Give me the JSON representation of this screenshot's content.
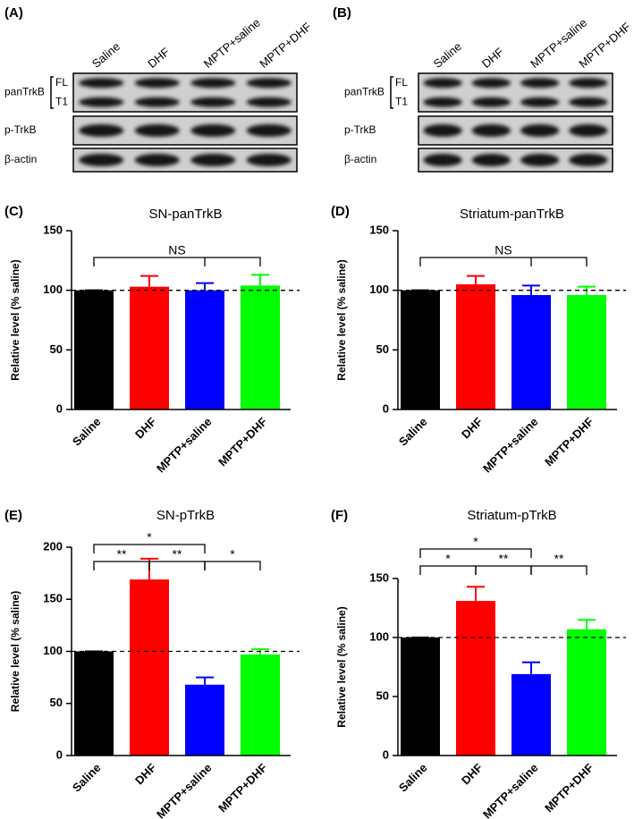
{
  "blots": [
    {
      "panel": "(A)",
      "lanes": [
        "Saline",
        "DHF",
        "MPTP+saline",
        "MPTP+DHF"
      ],
      "rows": [
        {
          "name": "panTrkB",
          "bands": [
            "FL",
            "T1"
          ]
        },
        {
          "name": "p-TrkB"
        },
        {
          "name": "β-actin"
        }
      ]
    },
    {
      "panel": "(B)",
      "lanes": [
        "Saline",
        "DHF",
        "MPTP+saline",
        "MPTP+DHF"
      ],
      "rows": [
        {
          "name": "panTrkB",
          "bands": [
            "FL",
            "T1"
          ]
        },
        {
          "name": "p-TrkB"
        },
        {
          "name": "β-actin"
        }
      ]
    }
  ],
  "chart_data": [
    {
      "type": "bar",
      "panel": "(C)",
      "title": "SN-panTrkB",
      "y_label": "Relative level (% saline)",
      "categories": [
        "Saline",
        "DHF",
        "MPTP+saline",
        "MPTP+DHF"
      ],
      "values": [
        100,
        103,
        100,
        104
      ],
      "errors": [
        0,
        9,
        6,
        9
      ],
      "colors": [
        "#000000",
        "#ff0000",
        "#0000ff",
        "#00ff00"
      ],
      "ylim": [
        0,
        150
      ],
      "yticks": [
        0,
        50,
        100,
        150
      ],
      "reference_line": 100,
      "brackets": [
        {
          "label": "NS",
          "from": "Saline",
          "to": "MPTP+DHF"
        }
      ]
    },
    {
      "type": "bar",
      "panel": "(D)",
      "title": "Striatum-panTrkB",
      "y_label": "Relative level (% saline)",
      "categories": [
        "Saline",
        "DHF",
        "MPTP+saline",
        "MPTP+DHF"
      ],
      "values": [
        100,
        105,
        96,
        96
      ],
      "errors": [
        0,
        7,
        8,
        7
      ],
      "colors": [
        "#000000",
        "#ff0000",
        "#0000ff",
        "#00ff00"
      ],
      "ylim": [
        0,
        150
      ],
      "yticks": [
        0,
        50,
        100,
        150
      ],
      "reference_line": 100,
      "brackets": [
        {
          "label": "NS",
          "from": "Saline",
          "to": "MPTP+DHF"
        }
      ]
    },
    {
      "type": "bar",
      "panel": "(E)",
      "title": "SN-pTrkB",
      "y_label": "Relative level (% saline)",
      "categories": [
        "Saline",
        "DHF",
        "MPTP+saline",
        "MPTP+DHF"
      ],
      "values": [
        100,
        169,
        68,
        97
      ],
      "errors": [
        0,
        20,
        7,
        5
      ],
      "colors": [
        "#000000",
        "#ff0000",
        "#0000ff",
        "#00ff00"
      ],
      "ylim": [
        0,
        200
      ],
      "yticks": [
        0,
        50,
        100,
        150,
        200
      ],
      "reference_line": 100,
      "brackets": [
        {
          "label": "*",
          "from": "Saline",
          "to": "MPTP+saline"
        },
        {
          "label": "**",
          "from": "Saline",
          "to": "DHF"
        },
        {
          "label": "**",
          "from": "DHF",
          "to": "MPTP+saline"
        },
        {
          "label": "*",
          "from": "MPTP+saline",
          "to": "MPTP+DHF"
        }
      ]
    },
    {
      "type": "bar",
      "panel": "(F)",
      "title": "Striatum-pTrkB",
      "y_label": "Relative level (% saline)",
      "categories": [
        "Saline",
        "DHF",
        "MPTP+saline",
        "MPTP+DHF"
      ],
      "values": [
        100,
        131,
        69,
        107
      ],
      "errors": [
        0,
        12,
        10,
        8
      ],
      "colors": [
        "#000000",
        "#ff0000",
        "#0000ff",
        "#00ff00"
      ],
      "ylim": [
        0,
        150
      ],
      "yticks": [
        0,
        50,
        100,
        150
      ],
      "reference_line": 100,
      "brackets": [
        {
          "label": "*",
          "from": "Saline",
          "to": "MPTP+saline"
        },
        {
          "label": "*",
          "from": "Saline",
          "to": "DHF"
        },
        {
          "label": "**",
          "from": "DHF",
          "to": "MPTP+saline"
        },
        {
          "label": "**",
          "from": "MPTP+saline",
          "to": "MPTP+DHF"
        }
      ]
    }
  ]
}
